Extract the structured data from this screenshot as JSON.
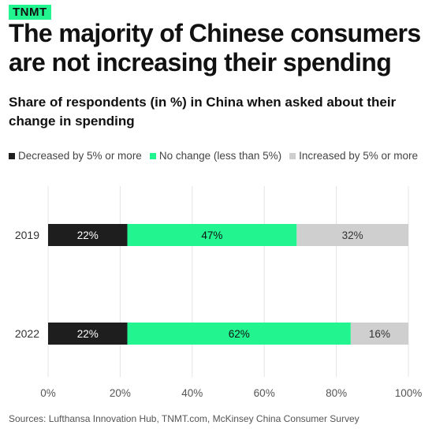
{
  "brand": {
    "label": "TNMT"
  },
  "header": {
    "headline": "The majority of Chinese consumers are not increasing their spending",
    "subtitle": "Share of respondents (in %) in China when asked about their change in spending"
  },
  "source": "Sources: Lufthansa Innovation Hub, TNMT.com, McKinsey China Consumer Survey",
  "chart_data": {
    "type": "bar",
    "orientation": "horizontal",
    "stacked": true,
    "categories": [
      "2019",
      "2022"
    ],
    "series": [
      {
        "name": "Decreased by 5% or more",
        "values": [
          22,
          22
        ],
        "labels": [
          "22%",
          "22%"
        ],
        "color": "#1e1e1e",
        "label_color": "#ffffff"
      },
      {
        "name": "No change (less than 5%)",
        "values": [
          47,
          62
        ],
        "labels": [
          "47%",
          "62%"
        ],
        "color": "#22f58f",
        "label_color": "#111111"
      },
      {
        "name": "Increased by 5% or more",
        "values": [
          32,
          16
        ],
        "labels": [
          "32%",
          "16%"
        ],
        "color": "#cfcfcf",
        "label_color": "#333333"
      }
    ],
    "xlim": [
      0,
      100
    ],
    "xticks": [
      0,
      20,
      40,
      60,
      80,
      100
    ],
    "xtick_labels": [
      "0%",
      "20%",
      "40%",
      "60%",
      "80%",
      "100%"
    ],
    "grid": true,
    "legend_position": "top-left"
  }
}
